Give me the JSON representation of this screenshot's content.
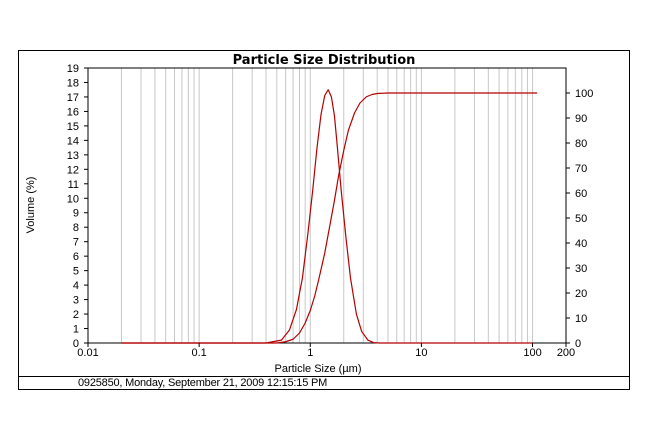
{
  "chart_data": {
    "type": "line",
    "title": "Particle Size Distribution",
    "xlabel": "Particle Size (µm)",
    "ylabel": "Volume (%)",
    "x_scale": "log",
    "xlim": [
      0.01,
      200
    ],
    "ylim": [
      0,
      19
    ],
    "y2lim": [
      0,
      110
    ],
    "grid": true,
    "x_tick_labels": [
      "0.01",
      "0.1",
      "1",
      "10",
      "100",
      "200"
    ],
    "x_tick_values": [
      0.01,
      0.1,
      1,
      10,
      100,
      200
    ],
    "y_tick_labels": [
      "0",
      "1",
      "2",
      "3",
      "4",
      "5",
      "6",
      "7",
      "8",
      "9",
      "10",
      "11",
      "12",
      "13",
      "14",
      "15",
      "16",
      "17",
      "18",
      "19"
    ],
    "y2_tick_labels": [
      "0",
      "10",
      "20",
      "30",
      "40",
      "50",
      "60",
      "70",
      "80",
      "90",
      "100"
    ],
    "series": [
      {
        "axis": "left",
        "color": "#b40000",
        "x": [
          0.02,
          0.4,
          0.55,
          0.65,
          0.75,
          0.85,
          0.95,
          1.05,
          1.15,
          1.25,
          1.35,
          1.45,
          1.55,
          1.65,
          1.75,
          1.9,
          2.1,
          2.3,
          2.6,
          2.9,
          3.3,
          3.7,
          4.2,
          100
        ],
        "y": [
          0,
          0,
          0.2,
          0.9,
          2.3,
          4.5,
          7.5,
          10.5,
          13.5,
          15.8,
          17.1,
          17.5,
          17.0,
          15.7,
          13.6,
          10.5,
          7.2,
          4.5,
          2.0,
          0.8,
          0.2,
          0.03,
          0,
          0
        ]
      },
      {
        "axis": "right",
        "color": "#b40000",
        "x": [
          0.02,
          0.5,
          0.6,
          0.7,
          0.8,
          0.9,
          1.0,
          1.1,
          1.2,
          1.35,
          1.5,
          1.65,
          1.8,
          2.0,
          2.2,
          2.5,
          2.8,
          3.2,
          3.6,
          4.0,
          5.0,
          110
        ],
        "y": [
          0,
          0,
          0.5,
          1.5,
          4,
          8,
          13,
          19,
          26,
          36,
          47,
          57,
          67,
          77,
          85,
          92,
          96,
          98.5,
          99.4,
          99.8,
          100,
          100
        ]
      }
    ]
  },
  "footer": {
    "text": "0925850, Monday, September 21, 2009 12:15:15 PM"
  }
}
